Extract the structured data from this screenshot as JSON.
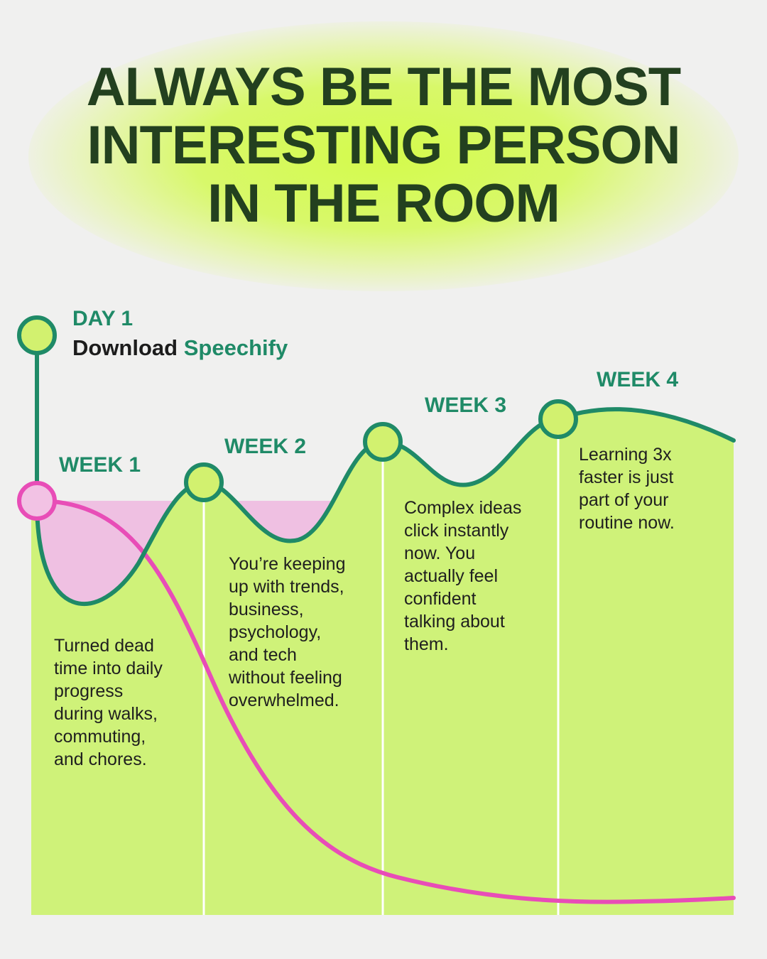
{
  "title_lines": [
    "ALWAYS BE THE MOST",
    "INTERESTING PERSON",
    "IN THE ROOM"
  ],
  "day1": {
    "label": "DAY 1",
    "action": "Download",
    "brand": "Speechify"
  },
  "weeks": [
    {
      "label": "WEEK 1",
      "text_lines": [
        "Turned dead",
        "time into daily",
        "progress",
        "during walks,",
        "commuting,",
        "and chores."
      ]
    },
    {
      "label": "WEEK 2",
      "text_lines": [
        "You’re keeping",
        "up with trends,",
        "business,",
        "psychology,",
        "and tech",
        "without feeling",
        "overwhelmed."
      ]
    },
    {
      "label": "WEEK 3",
      "text_lines": [
        "Complex ideas",
        "click instantly",
        "now. You",
        "actually feel",
        "confident",
        "talking about",
        "them."
      ]
    },
    {
      "label": "WEEK 4",
      "text_lines": [
        "Learning 3x",
        "faster is just",
        "part of your",
        "routine now."
      ]
    }
  ],
  "colors": {
    "background": "#f0f0ef",
    "title": "#23401f",
    "glow": "#d4fb4c",
    "growth_line": "#1f8a67",
    "growth_fill": "#cff279",
    "node_fill": "#d2f16f",
    "decline_line": "#e84db7",
    "decline_fill": "#efc0e2",
    "decline_node_fill": "#f2c2e4",
    "label_text": "#1f8a67",
    "body_text": "#1f1f1f"
  }
}
